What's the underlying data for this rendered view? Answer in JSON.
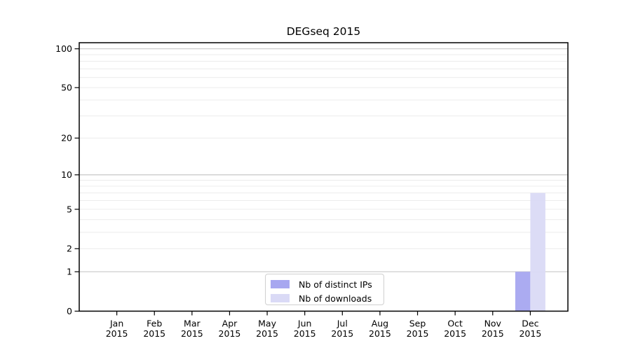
{
  "chart_data": {
    "type": "bar",
    "title": "DEGseq 2015",
    "x_tick_months": [
      "Jan",
      "Feb",
      "Mar",
      "Apr",
      "May",
      "Jun",
      "Jul",
      "Aug",
      "Sep",
      "Oct",
      "Nov",
      "Dec"
    ],
    "x_tick_year": "2015",
    "y_scale": "log1p",
    "y_ticks": [
      0,
      1,
      2,
      5,
      10,
      20,
      50,
      100
    ],
    "y_major_gridlines": [
      1,
      10,
      100
    ],
    "y_minor_gridlines": [
      2,
      3,
      4,
      5,
      6,
      7,
      8,
      9,
      20,
      30,
      40,
      50,
      60,
      70,
      80,
      90
    ],
    "ylim": [
      0,
      111
    ],
    "series": [
      {
        "name": "Nb of distinct IPs",
        "color": "#a7a7f0",
        "values": [
          0,
          0,
          0,
          0,
          0,
          0,
          0,
          0,
          0,
          0,
          0,
          1
        ]
      },
      {
        "name": "Nb of downloads",
        "color": "#dadaf6",
        "values": [
          0,
          0,
          0,
          0,
          0,
          0,
          0,
          0,
          0,
          0,
          0,
          7
        ]
      }
    ],
    "legend_position": "lower center inside",
    "colors": {
      "axis": "#000000",
      "major_grid": "#c8c8c8",
      "minor_grid": "#ececec",
      "background": "#ffffff",
      "text": "#000000"
    }
  }
}
